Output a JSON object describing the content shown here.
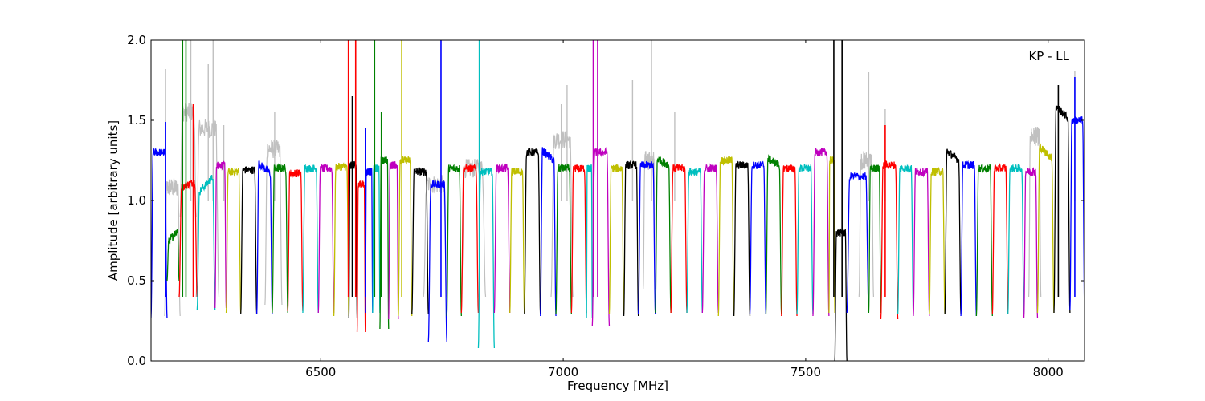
{
  "chart_data": {
    "type": "line",
    "title": "",
    "annotation": "KP - LL",
    "xlabel": "Frequency [MHz]",
    "ylabel": "Amplitude [arbitrary units]",
    "xlim": [
      6150,
      8075
    ],
    "ylim": [
      0.0,
      2.0
    ],
    "xticks": [
      6500,
      7000,
      7500,
      8000
    ],
    "xtick_labels": [
      "6500",
      "7000",
      "7500",
      "8000"
    ],
    "yticks": [
      0.0,
      0.5,
      1.0,
      1.5,
      2.0
    ],
    "ytick_labels": [
      "0.0",
      "0.5",
      "1.0",
      "1.5",
      "2.0"
    ],
    "grid": false,
    "legend": "none",
    "background_series": {
      "name": "unflagged",
      "color": "#c0c0c0",
      "segments": [
        {
          "start": 6178,
          "end": 6210,
          "lo": 0.28,
          "level": 1.08
        },
        {
          "start": 6210,
          "end": 6243,
          "lo": 0.9,
          "level": 1.55
        },
        {
          "start": 6243,
          "end": 6290,
          "lo": 0.4,
          "level": 1.45
        },
        {
          "start": 6385,
          "end": 6420,
          "lo": 0.35,
          "level": 1.32
        },
        {
          "start": 6712,
          "end": 6760,
          "lo": 0.4,
          "level": 1.1
        },
        {
          "start": 6790,
          "end": 6840,
          "lo": 0.4,
          "level": 1.2
        },
        {
          "start": 6975,
          "end": 7020,
          "lo": 0.4,
          "level": 1.38
        },
        {
          "start": 7165,
          "end": 7190,
          "lo": 0.45,
          "level": 1.25
        },
        {
          "start": 7610,
          "end": 7640,
          "lo": 0.4,
          "level": 1.25
        },
        {
          "start": 7960,
          "end": 7985,
          "lo": 0.4,
          "level": 1.4
        }
      ],
      "spikes": [
        {
          "x": 6180,
          "y": 1.82
        },
        {
          "x": 6232,
          "y": 2.0
        },
        {
          "x": 6268,
          "y": 1.85
        },
        {
          "x": 6278,
          "y": 2.0
        },
        {
          "x": 6300,
          "y": 1.47
        },
        {
          "x": 6405,
          "y": 1.55
        },
        {
          "x": 6996,
          "y": 1.6
        },
        {
          "x": 7008,
          "y": 1.72
        },
        {
          "x": 7143,
          "y": 1.75
        },
        {
          "x": 7182,
          "y": 2.0
        },
        {
          "x": 7230,
          "y": 1.55
        },
        {
          "x": 7630,
          "y": 1.8
        },
        {
          "x": 7664,
          "y": 1.57
        },
        {
          "x": 8055,
          "y": 1.81
        }
      ]
    },
    "colors": [
      "#0000ff",
      "#008000",
      "#ff0000",
      "#00bfbf",
      "#bf00bf",
      "#bfbf00",
      "#000000"
    ],
    "series": [
      {
        "color": "#0000ff",
        "start": 6150,
        "end": 6183,
        "level": 1.3,
        "lo": 0.27,
        "slope": 0.0
      },
      {
        "color": "#008000",
        "start": 6183,
        "end": 6208,
        "level": 0.78,
        "lo": 0.5,
        "slope": 0.1
      },
      {
        "color": "#ff0000",
        "start": 6208,
        "end": 6245,
        "level": 1.1,
        "lo": 0.4,
        "slope": 0.05
      },
      {
        "color": "#00bfbf",
        "start": 6245,
        "end": 6282,
        "level": 1.1,
        "lo": 0.32,
        "slope": 0.12
      },
      {
        "color": "#bf00bf",
        "start": 6282,
        "end": 6305,
        "level": 1.22,
        "lo": 0.33,
        "slope": 0.0
      },
      {
        "color": "#bfbf00",
        "start": 6305,
        "end": 6335,
        "level": 1.18,
        "lo": 0.3,
        "slope": 0.0
      },
      {
        "color": "#000000",
        "start": 6335,
        "end": 6368,
        "level": 1.19,
        "lo": 0.29,
        "slope": 0.0
      },
      {
        "color": "#0000ff",
        "start": 6368,
        "end": 6400,
        "level": 1.2,
        "lo": 0.29,
        "slope": -0.08
      },
      {
        "color": "#008000",
        "start": 6400,
        "end": 6432,
        "level": 1.2,
        "lo": 0.3,
        "slope": 0.0
      },
      {
        "color": "#ff0000",
        "start": 6432,
        "end": 6463,
        "level": 1.17,
        "lo": 0.31,
        "slope": 0.0
      },
      {
        "color": "#00bfbf",
        "start": 6463,
        "end": 6495,
        "level": 1.2,
        "lo": 0.3,
        "slope": 0.0
      },
      {
        "color": "#bf00bf",
        "start": 6495,
        "end": 6527,
        "level": 1.2,
        "lo": 0.3,
        "slope": 0.0
      },
      {
        "color": "#bfbf00",
        "start": 6527,
        "end": 6558,
        "level": 1.21,
        "lo": 0.28,
        "slope": 0.0
      },
      {
        "color": "#000000",
        "start": 6558,
        "end": 6575,
        "level": 1.22,
        "lo": 0.27,
        "slope": 0.0
      },
      {
        "color": "#ff0000",
        "start": 6575,
        "end": 6592,
        "level": 1.1,
        "lo": 0.18,
        "slope": 0.0
      },
      {
        "color": "#0000ff",
        "start": 6592,
        "end": 6607,
        "level": 1.18,
        "lo": 0.3,
        "slope": 0.0
      },
      {
        "color": "#00bfbf",
        "start": 6607,
        "end": 6622,
        "level": 1.2,
        "lo": 0.3,
        "slope": 0.0
      },
      {
        "color": "#008000",
        "start": 6622,
        "end": 6640,
        "level": 1.25,
        "lo": 0.2,
        "slope": 0.0
      },
      {
        "color": "#bf00bf",
        "start": 6640,
        "end": 6660,
        "level": 1.22,
        "lo": 0.26,
        "slope": 0.0
      },
      {
        "color": "#bfbf00",
        "start": 6660,
        "end": 6688,
        "level": 1.25,
        "lo": 0.28,
        "slope": 0.0
      },
      {
        "color": "#000000",
        "start": 6688,
        "end": 6722,
        "level": 1.18,
        "lo": 0.29,
        "slope": 0.0
      },
      {
        "color": "#0000ff",
        "start": 6722,
        "end": 6760,
        "level": 1.1,
        "lo": 0.12,
        "slope": 0.0
      },
      {
        "color": "#008000",
        "start": 6760,
        "end": 6790,
        "level": 1.2,
        "lo": 0.28,
        "slope": 0.0
      },
      {
        "color": "#ff0000",
        "start": 6790,
        "end": 6825,
        "level": 1.2,
        "lo": 0.3,
        "slope": 0.0
      },
      {
        "color": "#00bfbf",
        "start": 6825,
        "end": 6858,
        "level": 1.18,
        "lo": 0.08,
        "slope": 0.0
      },
      {
        "color": "#bf00bf",
        "start": 6858,
        "end": 6890,
        "level": 1.2,
        "lo": 0.3,
        "slope": 0.0
      },
      {
        "color": "#bfbf00",
        "start": 6890,
        "end": 6920,
        "level": 1.18,
        "lo": 0.3,
        "slope": 0.0
      },
      {
        "color": "#000000",
        "start": 6920,
        "end": 6953,
        "level": 1.3,
        "lo": 0.29,
        "slope": 0.0
      },
      {
        "color": "#0000ff",
        "start": 6953,
        "end": 6985,
        "level": 1.28,
        "lo": 0.28,
        "slope": -0.08
      },
      {
        "color": "#008000",
        "start": 6985,
        "end": 7017,
        "level": 1.2,
        "lo": 0.29,
        "slope": 0.0
      },
      {
        "color": "#ff0000",
        "start": 7017,
        "end": 7048,
        "level": 1.2,
        "lo": 0.3,
        "slope": 0.0
      },
      {
        "color": "#00bfbf",
        "start": 7048,
        "end": 7060,
        "level": 1.2,
        "lo": 0.27,
        "slope": 0.0
      },
      {
        "color": "#bf00bf",
        "start": 7060,
        "end": 7095,
        "level": 1.3,
        "lo": 0.22,
        "slope": 0.0
      },
      {
        "color": "#bfbf00",
        "start": 7095,
        "end": 7125,
        "level": 1.2,
        "lo": 0.29,
        "slope": 0.0
      },
      {
        "color": "#000000",
        "start": 7125,
        "end": 7155,
        "level": 1.22,
        "lo": 0.28,
        "slope": 0.0
      },
      {
        "color": "#0000ff",
        "start": 7155,
        "end": 7190,
        "level": 1.22,
        "lo": 0.29,
        "slope": 0.0
      },
      {
        "color": "#008000",
        "start": 7190,
        "end": 7222,
        "level": 1.24,
        "lo": 0.3,
        "slope": -0.05
      },
      {
        "color": "#ff0000",
        "start": 7222,
        "end": 7255,
        "level": 1.2,
        "lo": 0.3,
        "slope": 0.0
      },
      {
        "color": "#00bfbf",
        "start": 7255,
        "end": 7287,
        "level": 1.18,
        "lo": 0.3,
        "slope": 0.0
      },
      {
        "color": "#bf00bf",
        "start": 7287,
        "end": 7320,
        "level": 1.2,
        "lo": 0.3,
        "slope": 0.0
      },
      {
        "color": "#bfbf00",
        "start": 7320,
        "end": 7352,
        "level": 1.25,
        "lo": 0.28,
        "slope": 0.0
      },
      {
        "color": "#000000",
        "start": 7352,
        "end": 7385,
        "level": 1.22,
        "lo": 0.28,
        "slope": 0.0
      },
      {
        "color": "#0000ff",
        "start": 7385,
        "end": 7418,
        "level": 1.22,
        "lo": 0.29,
        "slope": 0.0
      },
      {
        "color": "#008000",
        "start": 7418,
        "end": 7450,
        "level": 1.24,
        "lo": 0.29,
        "slope": -0.05
      },
      {
        "color": "#ff0000",
        "start": 7450,
        "end": 7482,
        "level": 1.2,
        "lo": 0.28,
        "slope": 0.0
      },
      {
        "color": "#00bfbf",
        "start": 7482,
        "end": 7515,
        "level": 1.2,
        "lo": 0.29,
        "slope": 0.0
      },
      {
        "color": "#bf00bf",
        "start": 7515,
        "end": 7548,
        "level": 1.3,
        "lo": 0.28,
        "slope": 0.0
      },
      {
        "color": "#bfbf00",
        "start": 7548,
        "end": 7560,
        "level": 1.25,
        "lo": 0.3,
        "slope": 0.0
      },
      {
        "color": "#000000",
        "start": 7560,
        "end": 7585,
        "level": 0.8,
        "lo": 0.0,
        "slope": 0.0
      },
      {
        "color": "#0000ff",
        "start": 7585,
        "end": 7630,
        "level": 1.15,
        "lo": 0.3,
        "slope": 0.0
      },
      {
        "color": "#008000",
        "start": 7630,
        "end": 7655,
        "level": 1.2,
        "lo": 0.3,
        "slope": 0.0
      },
      {
        "color": "#ff0000",
        "start": 7655,
        "end": 7690,
        "level": 1.22,
        "lo": 0.26,
        "slope": 0.0
      },
      {
        "color": "#00bfbf",
        "start": 7690,
        "end": 7722,
        "level": 1.2,
        "lo": 0.29,
        "slope": 0.0
      },
      {
        "color": "#bf00bf",
        "start": 7722,
        "end": 7755,
        "level": 1.18,
        "lo": 0.28,
        "slope": 0.0
      },
      {
        "color": "#bfbf00",
        "start": 7755,
        "end": 7787,
        "level": 1.18,
        "lo": 0.29,
        "slope": 0.0
      },
      {
        "color": "#000000",
        "start": 7787,
        "end": 7820,
        "level": 1.28,
        "lo": 0.29,
        "slope": -0.08
      },
      {
        "color": "#0000ff",
        "start": 7820,
        "end": 7852,
        "level": 1.22,
        "lo": 0.28,
        "slope": 0.0
      },
      {
        "color": "#008000",
        "start": 7852,
        "end": 7885,
        "level": 1.2,
        "lo": 0.28,
        "slope": 0.0
      },
      {
        "color": "#ff0000",
        "start": 7885,
        "end": 7917,
        "level": 1.2,
        "lo": 0.29,
        "slope": 0.0
      },
      {
        "color": "#00bfbf",
        "start": 7917,
        "end": 7950,
        "level": 1.2,
        "lo": 0.29,
        "slope": 0.0
      },
      {
        "color": "#bf00bf",
        "start": 7950,
        "end": 7978,
        "level": 1.18,
        "lo": 0.27,
        "slope": 0.0
      },
      {
        "color": "#bfbf00",
        "start": 7978,
        "end": 8012,
        "level": 1.3,
        "lo": 0.3,
        "slope": -0.1
      },
      {
        "color": "#000000",
        "start": 8012,
        "end": 8045,
        "level": 1.55,
        "lo": 0.3,
        "slope": -0.1
      },
      {
        "color": "#0000ff",
        "start": 8045,
        "end": 8075,
        "level": 1.5,
        "lo": 0.32,
        "slope": 0.0
      }
    ],
    "spikes": [
      {
        "x": 6180,
        "y": 1.49,
        "color": "#0000ff"
      },
      {
        "x": 6215,
        "y": 2.0,
        "color": "#008000"
      },
      {
        "x": 6222,
        "y": 2.0,
        "color": "#008000"
      },
      {
        "x": 6237,
        "y": 1.6,
        "color": "#ff0000"
      },
      {
        "x": 6557,
        "y": 2.0,
        "color": "#ff0000"
      },
      {
        "x": 6565,
        "y": 1.65,
        "color": "#000000"
      },
      {
        "x": 6572,
        "y": 2.0,
        "color": "#ff0000"
      },
      {
        "x": 6592,
        "y": 1.45,
        "color": "#0000ff"
      },
      {
        "x": 6611,
        "y": 2.0,
        "color": "#008000"
      },
      {
        "x": 6625,
        "y": 1.55,
        "color": "#008000"
      },
      {
        "x": 6667,
        "y": 2.0,
        "color": "#bfbf00"
      },
      {
        "x": 6748,
        "y": 2.0,
        "color": "#0000ff"
      },
      {
        "x": 6827,
        "y": 2.0,
        "color": "#00bfbf"
      },
      {
        "x": 7062,
        "y": 2.0,
        "color": "#bf00bf"
      },
      {
        "x": 7071,
        "y": 2.0,
        "color": "#bf00bf"
      },
      {
        "x": 7558,
        "y": 2.0,
        "color": "#000000"
      },
      {
        "x": 7575,
        "y": 2.0,
        "color": "#000000"
      },
      {
        "x": 7664,
        "y": 1.47,
        "color": "#ff0000"
      },
      {
        "x": 8021,
        "y": 1.72,
        "color": "#000000"
      },
      {
        "x": 8055,
        "y": 1.77,
        "color": "#0000ff"
      }
    ]
  }
}
